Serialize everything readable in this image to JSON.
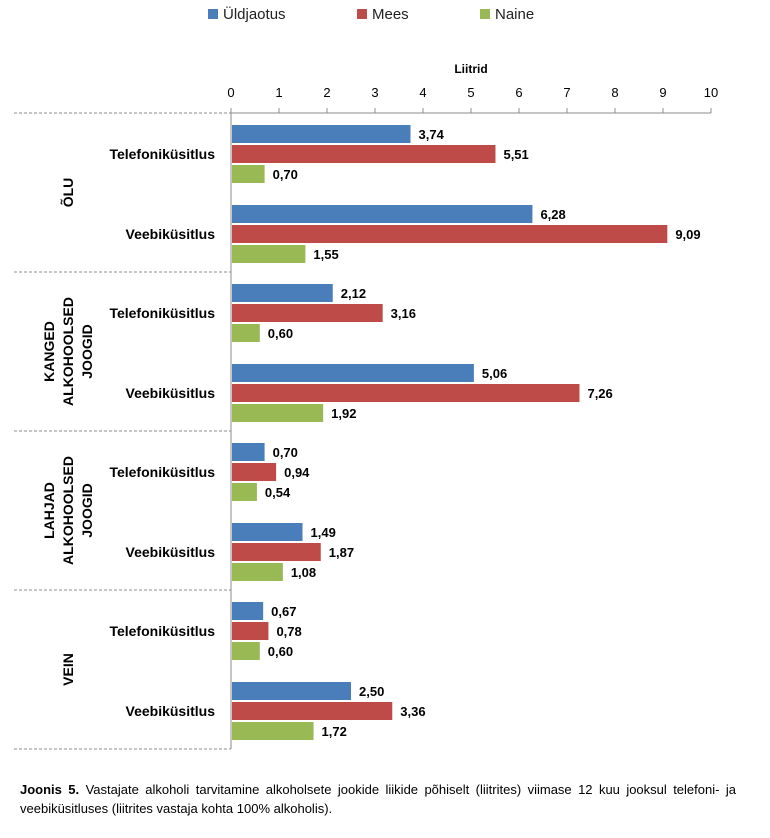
{
  "chart_data": {
    "type": "bar",
    "orientation": "horizontal",
    "x_axis_title": "Liitrid",
    "xlim": [
      0,
      10
    ],
    "x_ticks": [
      "0",
      "1",
      "2",
      "3",
      "4",
      "5",
      "6",
      "7",
      "8",
      "9",
      "10"
    ],
    "grid": false,
    "legend_position": "top",
    "series": [
      {
        "name": "Üldjaotus",
        "color": "#4a7ebb"
      },
      {
        "name": "Mees",
        "color": "#be4b48"
      },
      {
        "name": "Naine",
        "color": "#98b954"
      }
    ],
    "groups": [
      {
        "label": [
          "ÕLU"
        ],
        "categories": [
          {
            "label": "Telefoniküsitlus",
            "values": [
              3.74,
              5.51,
              0.7
            ],
            "value_labels": [
              "3,74",
              "5,51",
              "0,70"
            ]
          },
          {
            "label": "Veebiküsitlus",
            "values": [
              6.28,
              9.09,
              1.55
            ],
            "value_labels": [
              "6,28",
              "9,09",
              "1,55"
            ]
          }
        ]
      },
      {
        "label": [
          "KANGED",
          "ALKOHOOLSED",
          "JOOGID"
        ],
        "categories": [
          {
            "label": "Telefoniküsitlus",
            "values": [
              2.12,
              3.16,
              0.6
            ],
            "value_labels": [
              "2,12",
              "3,16",
              "0,60"
            ]
          },
          {
            "label": "Veebiküsitlus",
            "values": [
              5.06,
              7.26,
              1.92
            ],
            "value_labels": [
              "5,06",
              "7,26",
              "1,92"
            ]
          }
        ]
      },
      {
        "label": [
          "LAHJAD",
          "ALKOHOOLSED",
          "JOOGID"
        ],
        "categories": [
          {
            "label": "Telefoniküsitlus",
            "values": [
              0.7,
              0.94,
              0.54
            ],
            "value_labels": [
              "0,70",
              "0,94",
              "0,54"
            ]
          },
          {
            "label": "Veebiküsitlus",
            "values": [
              1.49,
              1.87,
              1.08
            ],
            "value_labels": [
              "1,49",
              "1,87",
              "1,08"
            ]
          }
        ]
      },
      {
        "label": [
          "VEIN"
        ],
        "categories": [
          {
            "label": "Telefoniküsitlus",
            "values": [
              0.67,
              0.78,
              0.6
            ],
            "value_labels": [
              "0,67",
              "0,78",
              "0,60"
            ]
          },
          {
            "label": "Veebiküsitlus",
            "values": [
              2.5,
              3.36,
              1.72
            ],
            "value_labels": [
              "2,50",
              "3,36",
              "1,72"
            ]
          }
        ]
      }
    ]
  },
  "caption": {
    "prefix": "Joonis 5.",
    "text": "Vastajate alkoholi tarvitamine alkoholsete jookide liikide põhiselt (liitrites) viimase 12 kuu jooksul telefoni- ja veebiküsitluses (liitrites vastaja kohta 100% alkoholis)."
  }
}
